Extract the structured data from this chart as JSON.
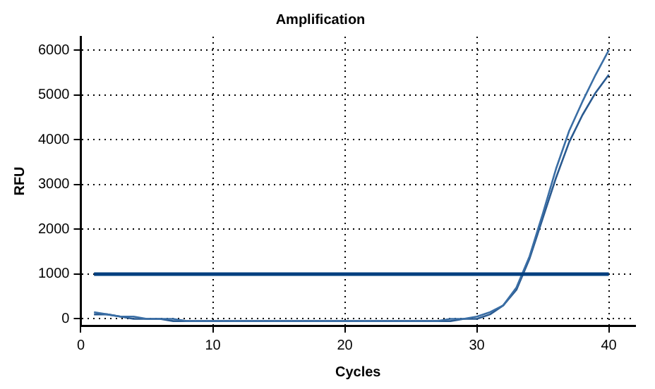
{
  "chart_data": {
    "type": "line",
    "title": "Amplification",
    "xlabel": "Cycles",
    "ylabel": "RFU",
    "xlim": [
      0,
      42
    ],
    "xticks": [
      0,
      10,
      20,
      30,
      40
    ],
    "ylim": [
      -150,
      6300
    ],
    "yticks": [
      0,
      1000,
      2000,
      3000,
      4000,
      5000,
      6000
    ],
    "grid": true,
    "line_style": "solid",
    "marker": "none",
    "legend": false,
    "x": [
      1,
      2,
      3,
      4,
      5,
      6,
      7,
      8,
      9,
      10,
      11,
      12,
      13,
      14,
      15,
      16,
      17,
      18,
      19,
      20,
      21,
      22,
      23,
      24,
      25,
      26,
      27,
      28,
      29,
      30,
      31,
      32,
      33,
      34,
      35,
      36,
      37,
      38,
      39,
      40
    ],
    "series": [
      {
        "color": "#3a6ea5",
        "values": [
          150,
          100,
          50,
          50,
          0,
          0,
          0,
          -50,
          -50,
          -50,
          -50,
          -50,
          -50,
          -50,
          -50,
          -50,
          -50,
          -50,
          -50,
          -50,
          -50,
          -50,
          -50,
          -50,
          -50,
          -50,
          -50,
          0,
          0,
          50,
          150,
          300,
          700,
          1400,
          2350,
          3350,
          4200,
          4850,
          5450,
          6000
        ]
      },
      {
        "color": "#2a5a90",
        "values": [
          100,
          100,
          50,
          0,
          0,
          0,
          -50,
          -50,
          -50,
          -50,
          -50,
          -50,
          -50,
          -50,
          -50,
          -50,
          -50,
          -50,
          -50,
          -50,
          -50,
          -50,
          -50,
          -50,
          -50,
          -50,
          -50,
          -50,
          0,
          0,
          100,
          300,
          650,
          1350,
          2250,
          3150,
          3950,
          4550,
          5050,
          5450
        ]
      }
    ],
    "ref_lines": [
      {
        "axis": "y",
        "value": 1000,
        "color": "#003f7f"
      }
    ]
  }
}
